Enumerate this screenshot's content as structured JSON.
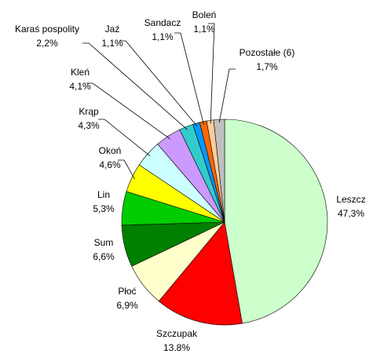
{
  "chart_data": {
    "type": "pie",
    "categories": [
      "Leszcz",
      "Szczupak",
      "Płoć",
      "Sum",
      "Lin",
      "Okoń",
      "Krąp",
      "Kleń",
      "Karaś pospolity",
      "Jaź",
      "Sandacz",
      "Boleń",
      "Pozostałe (6)"
    ],
    "values": [
      47.3,
      13.8,
      6.9,
      6.6,
      5.3,
      4.6,
      4.3,
      4.1,
      2.2,
      1.1,
      1.1,
      1.1,
      1.7
    ],
    "value_labels": [
      "47,3%",
      "13.8%",
      "6,9%",
      "6,6%",
      "5,3%",
      "4,6%",
      "4,3%",
      "4,1%",
      "2,2%",
      "1,1%",
      "1,1%",
      "1,1%",
      "1,7%"
    ],
    "colors": [
      "#ccffcc",
      "#ff0000",
      "#ffffcc",
      "#008000",
      "#00cc00",
      "#ffff00",
      "#ccffff",
      "#cc99ff",
      "#33cccc",
      "#0099ff",
      "#ff6600",
      "#ffcc99",
      "#c0c0c0"
    ]
  }
}
